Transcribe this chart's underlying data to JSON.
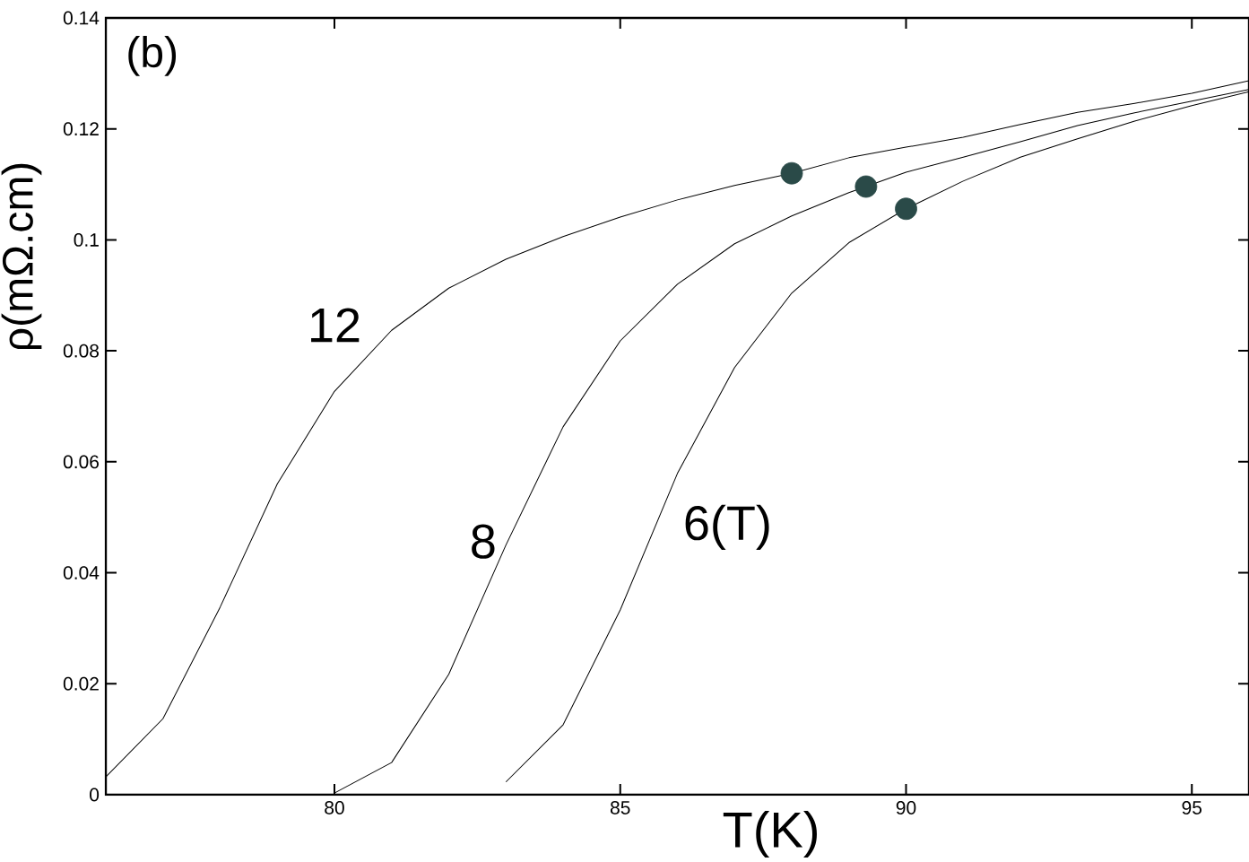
{
  "chart_data": {
    "type": "line",
    "xlabel": "T(K)",
    "ylabel": "ρ(mΩ.cm)",
    "xlim": [
      76,
      96
    ],
    "ylim": [
      0,
      0.14
    ],
    "xticks": [
      80,
      85,
      90,
      95
    ],
    "yticks": [
      0,
      0.02,
      0.04,
      0.06,
      0.08,
      0.1,
      0.12,
      0.14
    ],
    "marker": "none",
    "line_style": "solid",
    "grid": false,
    "legend": false,
    "annotations": [
      "(b)"
    ],
    "series": [
      {
        "name": "12",
        "color": "#000000",
        "x": [
          76,
          77,
          78,
          79,
          80,
          81,
          82,
          83,
          84,
          85,
          86,
          87,
          88,
          89,
          90,
          91,
          92,
          93,
          94,
          95,
          96
        ],
        "values": [
          0.0032,
          0.0137,
          0.0338,
          0.056,
          0.0727,
          0.0837,
          0.0913,
          0.0965,
          0.1006,
          0.1041,
          0.1072,
          0.1098,
          0.112,
          0.1148,
          0.1167,
          0.1185,
          0.1208,
          0.123,
          0.1246,
          0.1264,
          0.1287
        ]
      },
      {
        "name": "8",
        "color": "#000000",
        "x": [
          80,
          81,
          82,
          83,
          84,
          85,
          86,
          87,
          88,
          89,
          90,
          91,
          92,
          93,
          94,
          95,
          96
        ],
        "values": [
          0.0003,
          0.0058,
          0.0217,
          0.045,
          0.0663,
          0.0818,
          0.092,
          0.0993,
          0.1043,
          0.1085,
          0.1122,
          0.1149,
          0.1177,
          0.1206,
          0.1229,
          0.125,
          0.1271
        ]
      },
      {
        "name": "6(T)",
        "color": "#000000",
        "x": [
          83,
          84,
          85,
          86,
          87,
          88,
          89,
          90,
          91,
          92,
          93,
          94,
          95,
          96
        ],
        "values": [
          0.0023,
          0.0126,
          0.0333,
          0.0579,
          0.077,
          0.0904,
          0.0995,
          0.1056,
          0.1106,
          0.1149,
          0.1182,
          0.1214,
          0.1242,
          0.1267
        ]
      },
      {
        "type": "scatter",
        "color": "#2a4a48",
        "x": [
          88.0,
          89.3,
          90.0
        ],
        "values": [
          0.112,
          0.1096,
          0.1056
        ]
      }
    ]
  }
}
